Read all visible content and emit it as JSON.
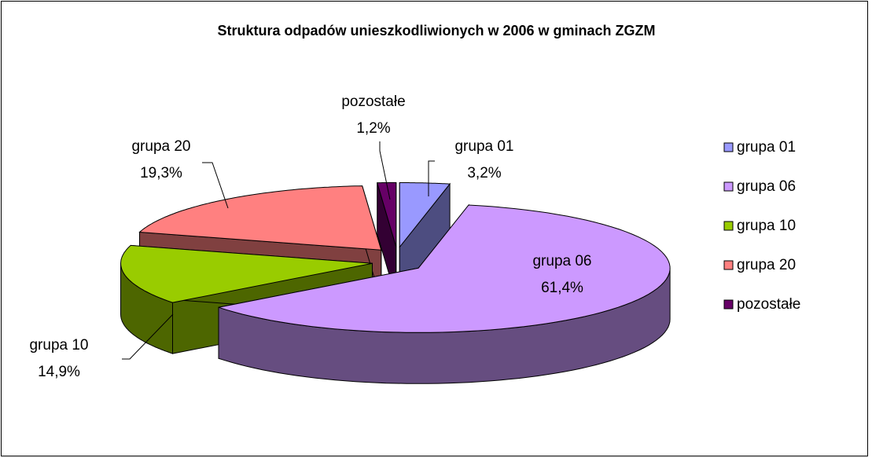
{
  "chart_data": {
    "type": "pie3d",
    "title": "Struktura odpadów unieszkodliwionych w 2006 w gminach ZGZM",
    "categories": [
      "grupa 01",
      "grupa 06",
      "grupa 10",
      "grupa 20",
      "pozostałe"
    ],
    "values": [
      3.2,
      61.4,
      14.9,
      19.3,
      1.2
    ],
    "value_labels": [
      "3,2%",
      "61,4%",
      "14,9%",
      "19,3%",
      "1,2%"
    ],
    "colors": [
      "#9999ff",
      "#cc99ff",
      "#99cc00",
      "#ff8080",
      "#660066"
    ],
    "legend": "right"
  }
}
